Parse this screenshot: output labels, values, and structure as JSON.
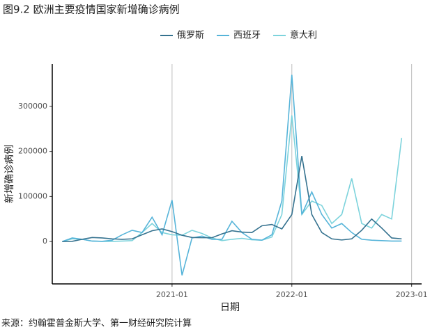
{
  "chart_data": {
    "type": "line",
    "title": "图9.2 欧洲主要疫情国家新增确诊病例",
    "x_label": "日期",
    "y_label": "新增确诊病例",
    "caption": "来源：约翰霍普金斯大学、第一财经研究院计算",
    "x": [
      "2020-02",
      "2020-03",
      "2020-04",
      "2020-05",
      "2020-06",
      "2020-07",
      "2020-08",
      "2020-09",
      "2020-10",
      "2020-11",
      "2020-12",
      "2021-01",
      "2021-02",
      "2021-03",
      "2021-04",
      "2021-05",
      "2021-06",
      "2021-07",
      "2021-08",
      "2021-09",
      "2021-10",
      "2021-11",
      "2021-12",
      "2022-01",
      "2022-02",
      "2022-03",
      "2022-04",
      "2022-05",
      "2022-06",
      "2022-07",
      "2022-08",
      "2022-09",
      "2022-10",
      "2022-11",
      "2022-12"
    ],
    "series": [
      {
        "name": "俄罗斯",
        "color": "#35728f",
        "values": [
          0,
          500,
          5000,
          9000,
          8000,
          6000,
          5000,
          6000,
          15000,
          24000,
          28000,
          22000,
          14000,
          9000,
          8500,
          8500,
          17000,
          24000,
          21000,
          20000,
          35000,
          38000,
          28000,
          60000,
          190000,
          60000,
          20000,
          6000,
          3500,
          6000,
          25000,
          50000,
          30000,
          8000,
          6000
        ]
      },
      {
        "name": "西班牙",
        "color": "#56b4d9",
        "values": [
          0,
          8000,
          5000,
          1000,
          500,
          3000,
          15000,
          25000,
          20000,
          54000,
          15000,
          92000,
          -75000,
          8000,
          12000,
          5000,
          5000,
          45000,
          20000,
          5000,
          3000,
          15000,
          90000,
          370000,
          60000,
          110000,
          60000,
          30000,
          40000,
          20000,
          5000,
          3000,
          2000,
          1000,
          1000
        ]
      },
      {
        "name": "意大利",
        "color": "#7dd3dc",
        "values": [
          0,
          6000,
          5000,
          1000,
          300,
          300,
          1000,
          2000,
          20000,
          40000,
          20000,
          15000,
          14000,
          25000,
          18000,
          8000,
          2000,
          5000,
          7000,
          4000,
          3000,
          10000,
          60000,
          280000,
          60000,
          90000,
          80000,
          40000,
          60000,
          140000,
          40000,
          30000,
          60000,
          50000,
          230000
        ]
      }
    ],
    "xlim": [
      "2020-01",
      "2023-02"
    ],
    "xticks": [
      "2021-01",
      "2022-01",
      "2023-01"
    ],
    "ylim": [
      -94000,
      394000
    ],
    "yticks": [
      0,
      100000,
      200000,
      300000
    ],
    "grid": "x",
    "legend": "top"
  }
}
